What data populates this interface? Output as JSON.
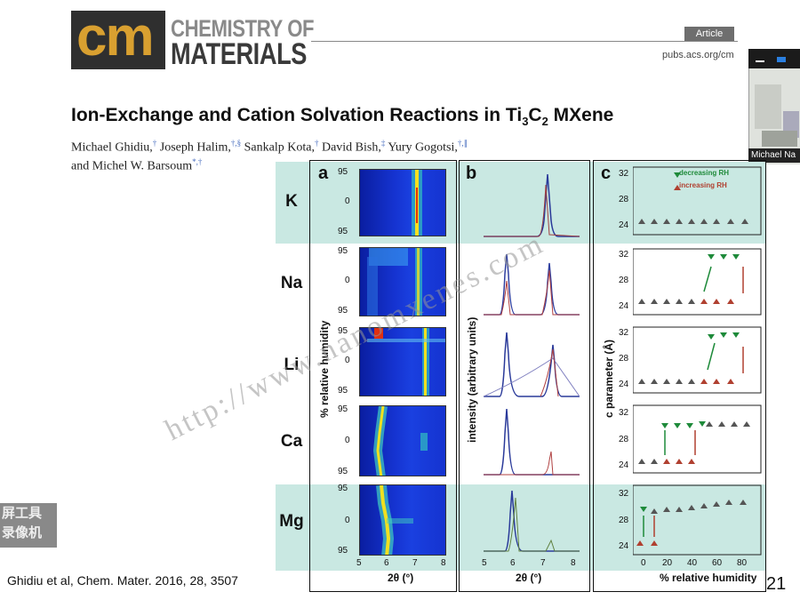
{
  "header": {
    "logo_mark": "cm",
    "logo_line1": "CHEMISTRY OF",
    "logo_line2": "MATERIALS",
    "article_badge": "Article",
    "journal_url": "pubs.acs.org/cm"
  },
  "webcam": {
    "participant_name": "Michael Na"
  },
  "article": {
    "title_parts": [
      "Ion-Exchange and Cation Solvation Reactions in Ti",
      "3",
      "C",
      "2",
      " MXene"
    ],
    "authors_line1": [
      {
        "name": "Michael Ghidiu,",
        "sup": "†"
      },
      {
        "name": " Joseph Halim,",
        "sup": "†,§"
      },
      {
        "name": " Sankalp Kota,",
        "sup": "†"
      },
      {
        "name": " David Bish,",
        "sup": "‡"
      },
      {
        "name": " Yury Gogotsi,",
        "sup": "†,∥"
      }
    ],
    "authors_line2": [
      {
        "name": "and Michel W. Barsoum",
        "sup": "*,†"
      }
    ]
  },
  "figure": {
    "panel_letters": [
      "a",
      "b",
      "c"
    ],
    "ions": [
      "K",
      "Na",
      "Li",
      "Ca",
      "Mg"
    ],
    "panel_a": {
      "y_ticks": [
        "95",
        "0",
        "95"
      ],
      "x_ticks": [
        "5",
        "6",
        "7",
        "8"
      ],
      "x_label": "2θ (°)",
      "y_label": "% relative humidity"
    },
    "panel_b": {
      "x_ticks": [
        "5",
        "6",
        "7",
        "8"
      ],
      "x_label": "2θ (°)",
      "y_label": "intensity (arbitrary units)"
    },
    "panel_c": {
      "y_ticks_per_row": [
        [
          "32",
          "28",
          "24"
        ],
        [
          "32",
          "28",
          "24"
        ],
        [
          "32",
          "28",
          "24"
        ],
        [
          "32",
          "28",
          "24"
        ],
        [
          "32",
          "28",
          "24"
        ]
      ],
      "x_ticks": [
        "0",
        "20",
        "40",
        "60",
        "80"
      ],
      "x_label": "% relative humidity",
      "y_label": "c parameter (Å)",
      "legend": [
        {
          "label": "decreasing RH",
          "color": "#1e8a3a",
          "marker": "triangle-down"
        },
        {
          "label": "increasing RH",
          "color": "#b04030",
          "marker": "triangle-up"
        }
      ]
    },
    "colors": {
      "band": "#c9e8e2",
      "decreasing": "#1e8a3a",
      "increasing": "#b04030"
    }
  },
  "watermark": "http://www.nanomxenes.com",
  "overlay_text": [
    "屏工具",
    "录像机"
  ],
  "citation": "Ghidiu et al, Chem. Mater. 2016, 28, 3507",
  "slide_number": "21"
}
